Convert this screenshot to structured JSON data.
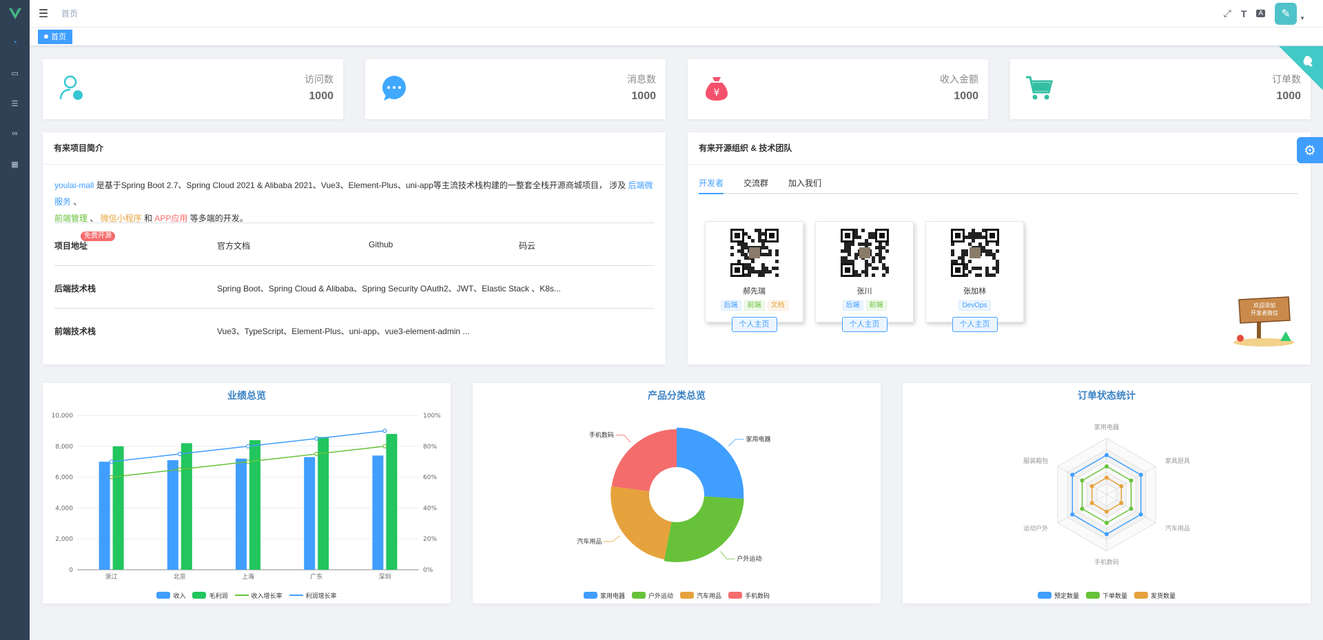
{
  "breadcrumb": {
    "home": "首页"
  },
  "tags": {
    "active": "首页"
  },
  "stats": [
    {
      "label": "访问数",
      "value": "1000",
      "icon": "user-icon",
      "color": "#36c6d3"
    },
    {
      "label": "消息数",
      "value": "1000",
      "icon": "message-icon",
      "color": "#40a9ff"
    },
    {
      "label": "收入金额",
      "value": "1000",
      "icon": "money-icon",
      "color": "#f4516c"
    },
    {
      "label": "订单数",
      "value": "1000",
      "icon": "cart-icon",
      "color": "#34bfa3"
    }
  ],
  "intro": {
    "title": "有来项目简介",
    "project_name": "youlai-mall",
    "text1": " 是基于Spring Boot 2.7、Spring Cloud 2021 & Alibaba 2021、Vue3、Element-Plus、uni-app等主流技术栈构建的一整套全栈开源商城项目， 涉及 ",
    "link_backend": "后端微服务",
    "sep1": " 、 ",
    "link_frontend": "前端管理",
    "sep2": " 、 ",
    "link_mini": "微信小程序",
    "and": " 和 ",
    "link_app": "APP应用",
    "text2": " 等多端的开发。",
    "rows": [
      {
        "key": "项目地址",
        "badge": "免费开源",
        "links": [
          "官方文档",
          "Github",
          "码云"
        ]
      },
      {
        "key": "后端技术栈",
        "value": "Spring Boot、Spring Cloud & Alibaba、Spring Security OAuth2、JWT、Elastic Stack 、K8s..."
      },
      {
        "key": "前端技术栈",
        "value": "Vue3、TypeScript、Element-Plus、uni-app、vue3-element-admin ..."
      }
    ]
  },
  "team": {
    "title": "有来开源组织 & 技术团队",
    "tabs": [
      "开发者",
      "交流群",
      "加入我们"
    ],
    "sign_text": [
      "欢迎添加",
      "开发者微信"
    ],
    "devs": [
      {
        "name": "郝先瑞",
        "tags": [
          "后端",
          "前端",
          "文档"
        ],
        "button": "个人主页"
      },
      {
        "name": "张川",
        "tags": [
          "后端",
          "前端"
        ],
        "button": "个人主页"
      },
      {
        "name": "张加林",
        "tags": [
          "DevOps"
        ],
        "button": "个人主页"
      }
    ]
  },
  "charts": {
    "bar": {
      "type": "bar",
      "title": "业绩总览",
      "categories": [
        "浙江",
        "北京",
        "上海",
        "广东",
        "深圳"
      ],
      "ylim": [
        0,
        10000
      ],
      "yticks": [
        "0",
        "2,000",
        "4,000",
        "6,000",
        "8,000",
        "10,000"
      ],
      "y2lim": [
        0,
        100
      ],
      "y2ticks": [
        "0%",
        "20%",
        "40%",
        "60%",
        "80%",
        "100%"
      ],
      "series": [
        {
          "name": "收入",
          "type": "bar",
          "values": [
            7000,
            7100,
            7200,
            7300,
            7400
          ],
          "color": "#409eff"
        },
        {
          "name": "毛利润",
          "type": "bar",
          "values": [
            8000,
            8200,
            8400,
            8600,
            8800
          ],
          "color": "#22c55e"
        },
        {
          "name": "收入增长率",
          "type": "line",
          "values": [
            60,
            65,
            70,
            75,
            80
          ],
          "color": "#67c23a"
        },
        {
          "name": "利润增长率",
          "type": "line",
          "values": [
            70,
            75,
            80,
            85,
            90
          ],
          "color": "#409eff"
        }
      ]
    },
    "pie": {
      "type": "pie",
      "title": "产品分类总览",
      "series": [
        {
          "name": "家用电器",
          "value": 26,
          "color": "#409eff"
        },
        {
          "name": "户外运动",
          "value": 27,
          "color": "#67c23a"
        },
        {
          "name": "汽车用品",
          "value": 24,
          "color": "#e6a23c"
        },
        {
          "name": "手机数码",
          "value": 23,
          "color": "#f56c6c"
        }
      ]
    },
    "radar": {
      "type": "radar",
      "title": "订单状态统计",
      "indicators": [
        "家用电器",
        "家具厨具",
        "汽车用品",
        "手机数码",
        "运动户外",
        "服装箱包"
      ],
      "max": 10,
      "series": [
        {
          "name": "预定数量",
          "values": [
            7,
            7,
            7,
            7,
            7,
            7
          ],
          "color": "#409eff"
        },
        {
          "name": "下单数量",
          "values": [
            5,
            5,
            5,
            5,
            5,
            5
          ],
          "color": "#67c23a"
        },
        {
          "name": "发货数量",
          "values": [
            3,
            3,
            3,
            3,
            3,
            3
          ],
          "color": "#e6a23c"
        }
      ]
    }
  }
}
